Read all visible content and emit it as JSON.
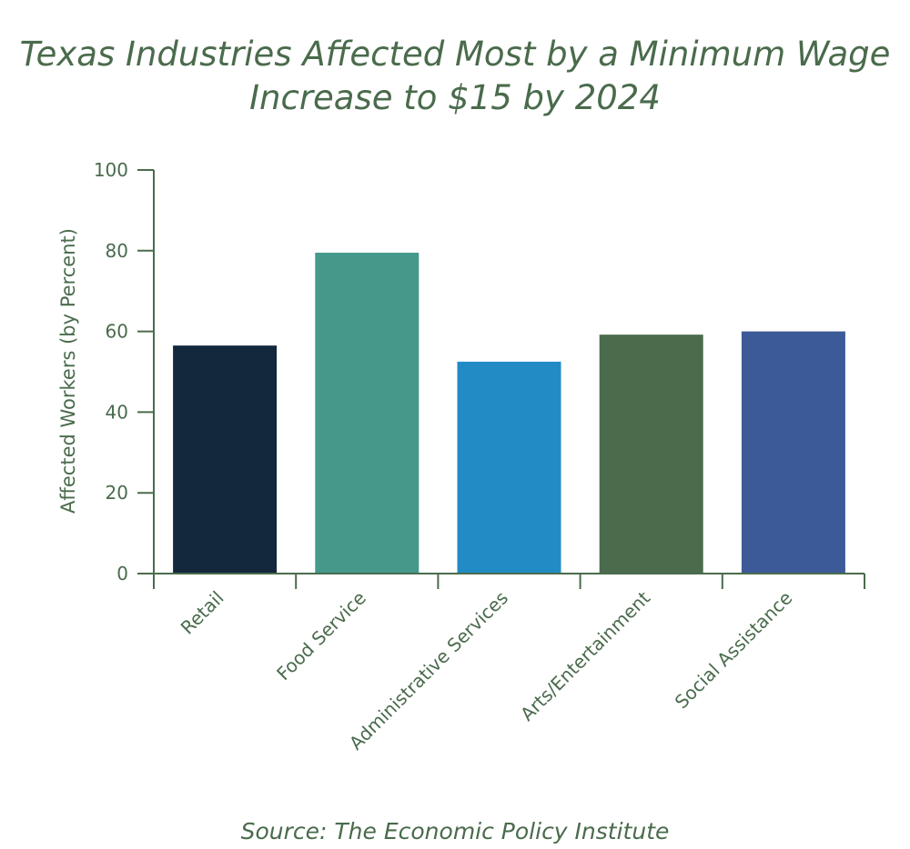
{
  "chart_data": {
    "type": "bar",
    "title_line1": "Texas Industries Affected Most by a Minimum Wage",
    "title_line2": "Increase to $15 by 2024",
    "ylabel": "Affected Workers (by Percent)",
    "xlabel": "",
    "categories": [
      "Retail",
      "Food Service",
      "Administrative Services",
      "Arts/Entertainment",
      "Social Assistance"
    ],
    "values": [
      56.5,
      79.5,
      52.5,
      59.2,
      60.0
    ],
    "colors": [
      "#13283d",
      "#44998a",
      "#228bc6",
      "#4a6b4c",
      "#3d5a98"
    ],
    "ylim": [
      0,
      100
    ],
    "yticks": [
      "0",
      "20",
      "40",
      "60",
      "80",
      "100"
    ],
    "grid": false,
    "source": "Source: The Economic Policy Institute",
    "axis_color": "#4a6b4c"
  }
}
